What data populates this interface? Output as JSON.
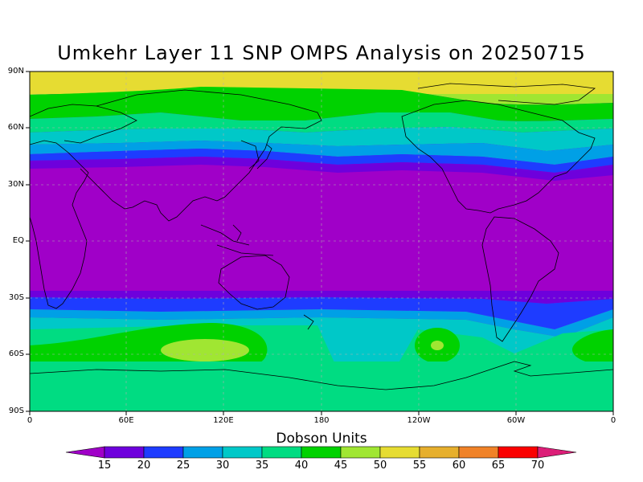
{
  "title": "Umkehr Layer 11 SNP OMPS Analysis on 20250715",
  "colorbar": {
    "title": "Dobson Units",
    "levels": [
      "15",
      "20",
      "25",
      "30",
      "35",
      "40",
      "45",
      "50",
      "55",
      "60",
      "65",
      "70"
    ],
    "colors": [
      "#a000c8",
      "#6e00dc",
      "#1e3cff",
      "#00a0e6",
      "#00c8c8",
      "#00dc82",
      "#00d200",
      "#a0e632",
      "#e6dc32",
      "#e6af2d",
      "#f08228",
      "#fa0000",
      "#dc1e78"
    ]
  },
  "axes": {
    "y_ticks": [
      "90N",
      "60N",
      "30N",
      "EQ",
      "30S",
      "60S",
      "90S"
    ],
    "x_ticks": [
      "0",
      "60E",
      "120E",
      "180",
      "120W",
      "60W",
      "0"
    ]
  }
}
